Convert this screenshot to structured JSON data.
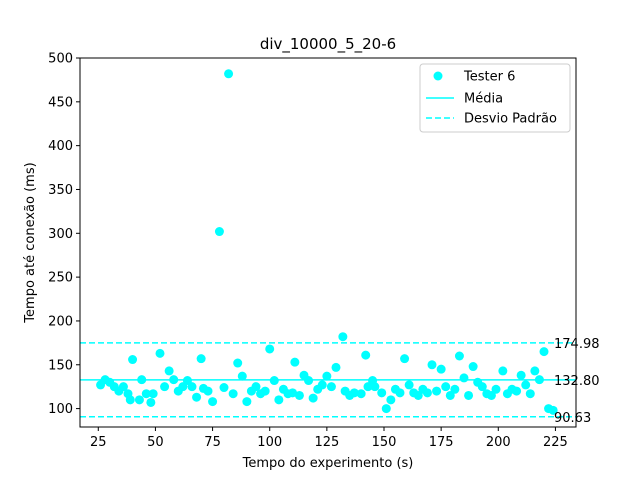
{
  "chart_data": {
    "type": "scatter",
    "title": "div_10000_5_20-6",
    "xlabel": "Tempo do experimento (s)",
    "ylabel": "Tempo até conexão (ms)",
    "xlim": [
      17,
      234
    ],
    "ylim": [
      79,
      500
    ],
    "xticks": [
      25,
      50,
      75,
      100,
      125,
      150,
      175,
      200,
      225
    ],
    "yticks": [
      100,
      150,
      200,
      250,
      300,
      350,
      400,
      450,
      500
    ],
    "legend_position": "top-right",
    "grid": false,
    "series": [
      {
        "name": "Tester 6",
        "color": "#00ffff",
        "points": [
          [
            26,
            127
          ],
          [
            28,
            133
          ],
          [
            30,
            130
          ],
          [
            32,
            125
          ],
          [
            34,
            120
          ],
          [
            36,
            125
          ],
          [
            38,
            117
          ],
          [
            39,
            110
          ],
          [
            40,
            156
          ],
          [
            43,
            110
          ],
          [
            44,
            133
          ],
          [
            46,
            117
          ],
          [
            48,
            107
          ],
          [
            49,
            117
          ],
          [
            52,
            163
          ],
          [
            54,
            125
          ],
          [
            56,
            143
          ],
          [
            58,
            133
          ],
          [
            60,
            120
          ],
          [
            62,
            125
          ],
          [
            64,
            132
          ],
          [
            66,
            125
          ],
          [
            68,
            113
          ],
          [
            70,
            157
          ],
          [
            71,
            123
          ],
          [
            73,
            120
          ],
          [
            75,
            108
          ],
          [
            78,
            302
          ],
          [
            80,
            124
          ],
          [
            82,
            482
          ],
          [
            84,
            117
          ],
          [
            86,
            152
          ],
          [
            88,
            137
          ],
          [
            90,
            108
          ],
          [
            92,
            120
          ],
          [
            94,
            125
          ],
          [
            96,
            117
          ],
          [
            98,
            120
          ],
          [
            100,
            168
          ],
          [
            102,
            132
          ],
          [
            104,
            110
          ],
          [
            106,
            122
          ],
          [
            108,
            117
          ],
          [
            110,
            118
          ],
          [
            111,
            153
          ],
          [
            113,
            115
          ],
          [
            115,
            138
          ],
          [
            117,
            132
          ],
          [
            119,
            112
          ],
          [
            121,
            122
          ],
          [
            123,
            127
          ],
          [
            125,
            137
          ],
          [
            127,
            125
          ],
          [
            129,
            147
          ],
          [
            132,
            182
          ],
          [
            133,
            120
          ],
          [
            135,
            115
          ],
          [
            137,
            118
          ],
          [
            140,
            117
          ],
          [
            142,
            161
          ],
          [
            143,
            125
          ],
          [
            145,
            132
          ],
          [
            146,
            125
          ],
          [
            149,
            118
          ],
          [
            151,
            100
          ],
          [
            153,
            110
          ],
          [
            155,
            122
          ],
          [
            157,
            118
          ],
          [
            159,
            157
          ],
          [
            161,
            127
          ],
          [
            163,
            118
          ],
          [
            165,
            115
          ],
          [
            167,
            122
          ],
          [
            169,
            118
          ],
          [
            171,
            150
          ],
          [
            173,
            120
          ],
          [
            175,
            145
          ],
          [
            177,
            125
          ],
          [
            179,
            115
          ],
          [
            181,
            122
          ],
          [
            183,
            160
          ],
          [
            185,
            135
          ],
          [
            187,
            115
          ],
          [
            189,
            148
          ],
          [
            191,
            130
          ],
          [
            193,
            125
          ],
          [
            195,
            117
          ],
          [
            197,
            115
          ],
          [
            199,
            122
          ],
          [
            202,
            143
          ],
          [
            204,
            117
          ],
          [
            206,
            122
          ],
          [
            208,
            120
          ],
          [
            210,
            138
          ],
          [
            212,
            127
          ],
          [
            214,
            117
          ],
          [
            216,
            143
          ],
          [
            218,
            133
          ],
          [
            220,
            165
          ],
          [
            222,
            100
          ],
          [
            224,
            98
          ]
        ]
      }
    ],
    "reference_lines": [
      {
        "name": "Média",
        "value": 132.8,
        "label": "132.80",
        "style": "solid",
        "color": "#00ffff"
      },
      {
        "name": "Desvio Padrão",
        "value": 174.98,
        "label": "174.98",
        "style": "dashed",
        "color": "#00ffff"
      },
      {
        "value": 90.63,
        "label": "90.63",
        "style": "dashed",
        "color": "#00ffff"
      }
    ],
    "legend": [
      {
        "label": "Tester 6",
        "marker": "point"
      },
      {
        "label": "Média",
        "marker": "solid-line"
      },
      {
        "label": "Desvio Padrão",
        "marker": "dashed-line"
      }
    ]
  }
}
